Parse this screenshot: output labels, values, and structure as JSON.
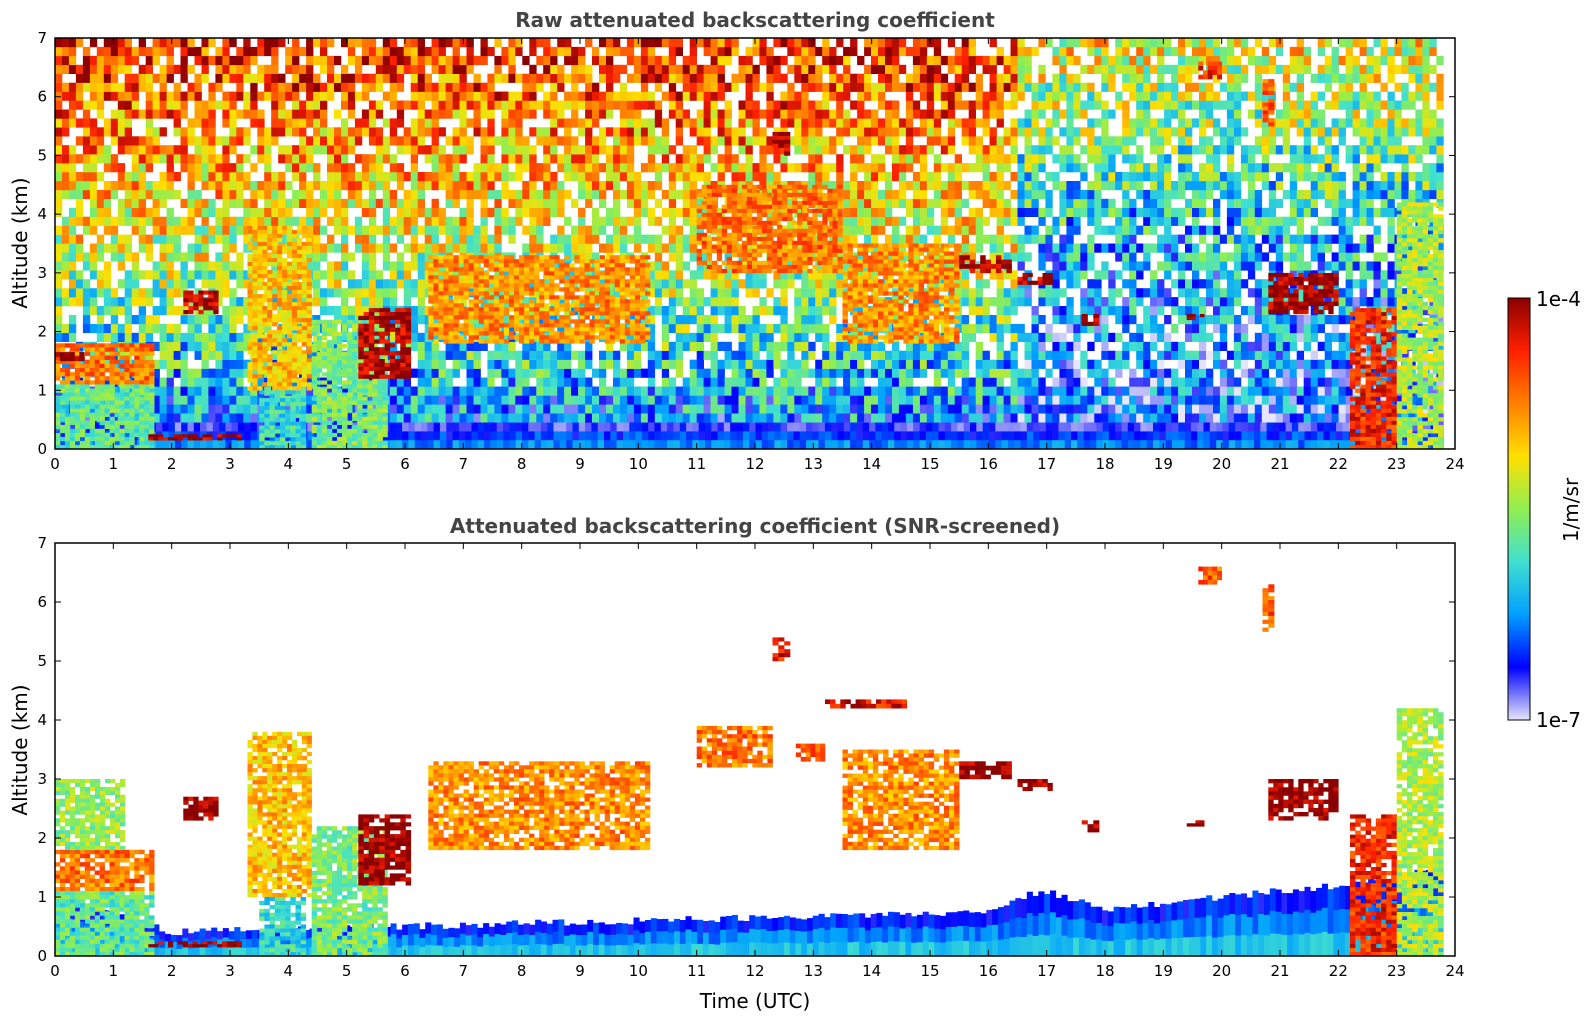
{
  "figure": {
    "xlabel": "Time (UTC)"
  },
  "colorbar": {
    "max_label": "1e-4",
    "min_label": "1e-7",
    "unit_label": "1/m/sr",
    "scale": "log",
    "range": [
      1e-07,
      0.0001
    ],
    "colormap": [
      "#e6e6f8",
      "#0000ff",
      "#00a0ff",
      "#40e0d0",
      "#90ee50",
      "#ffe000",
      "#ff8000",
      "#ff2000",
      "#8b0000"
    ]
  },
  "chart_data": [
    {
      "type": "heatmap",
      "title": "Raw attenuated backscattering coefficient",
      "xlabel": "",
      "ylabel": "Altitude (km)",
      "xlim": [
        0,
        24
      ],
      "ylim": [
        0,
        7
      ],
      "xticks": [
        0,
        1,
        2,
        3,
        4,
        5,
        6,
        7,
        8,
        9,
        10,
        11,
        12,
        13,
        14,
        15,
        16,
        17,
        18,
        19,
        20,
        21,
        22,
        23,
        24
      ],
      "yticks": [
        0,
        1,
        2,
        3,
        4,
        5,
        6,
        7
      ],
      "xtick_labels": [
        "0",
        "1",
        "2",
        "3",
        "4",
        "5",
        "6",
        "7",
        "8",
        "9",
        "10",
        "11",
        "12",
        "13",
        "14",
        "15",
        "16",
        "17",
        "18",
        "19",
        "20",
        "21",
        "22",
        "23",
        "24"
      ],
      "ytick_labels": [
        "0",
        "1",
        "2",
        "3",
        "4",
        "5",
        "6",
        "7"
      ],
      "data_end_hour": 23.8,
      "background_noise": [
        {
          "t0": 0.0,
          "t1": 16.5,
          "top_log": -4.4,
          "mid_log": -5.3,
          "bottom_log": -6.4
        },
        {
          "t0": 16.5,
          "t1": 23.8,
          "top_log": -5.2,
          "mid_log": -6.1,
          "bottom_log": -6.6
        }
      ],
      "boundary_layer": {
        "top_km": 0.45,
        "log_value": -6.5
      },
      "cloud_features": [
        {
          "t0": 0.0,
          "t1": 1.7,
          "z0": 1.1,
          "z1": 1.8,
          "log_value": -4.7
        },
        {
          "t0": 0.0,
          "t1": 1.7,
          "z0": 0.0,
          "z1": 1.1,
          "log_value": -5.7
        },
        {
          "t0": 0.0,
          "t1": 0.5,
          "z0": 1.5,
          "z1": 1.65,
          "log_value": -4.05
        },
        {
          "t0": 1.6,
          "t1": 3.2,
          "z0": 0.15,
          "z1": 0.25,
          "log_value": -4.05
        },
        {
          "t0": 2.2,
          "t1": 2.8,
          "z0": 2.3,
          "z1": 2.7,
          "log_value": -4.1
        },
        {
          "t0": 3.3,
          "t1": 4.4,
          "z0": 1.0,
          "z1": 3.8,
          "log_value": -5.0
        },
        {
          "t0": 3.5,
          "t1": 4.3,
          "z0": 0.0,
          "z1": 1.0,
          "log_value": -5.9
        },
        {
          "t0": 4.4,
          "t1": 5.7,
          "z0": 0.0,
          "z1": 2.2,
          "log_value": -5.6
        },
        {
          "t0": 5.2,
          "t1": 6.1,
          "z0": 1.2,
          "z1": 2.4,
          "log_value": -4.1
        },
        {
          "t0": 6.4,
          "t1": 10.2,
          "z0": 1.8,
          "z1": 3.3,
          "log_value": -4.8
        },
        {
          "t0": 11.0,
          "t1": 13.5,
          "z0": 3.0,
          "z1": 4.5,
          "log_value": -4.7
        },
        {
          "t0": 13.5,
          "t1": 15.5,
          "z0": 1.8,
          "z1": 3.5,
          "log_value": -4.8
        },
        {
          "t0": 15.5,
          "t1": 16.4,
          "z0": 3.0,
          "z1": 3.3,
          "log_value": -4.05
        },
        {
          "t0": 16.5,
          "t1": 17.1,
          "z0": 2.8,
          "z1": 3.0,
          "log_value": -4.1
        },
        {
          "t0": 17.6,
          "t1": 17.9,
          "z0": 2.1,
          "z1": 2.3,
          "log_value": -4.1
        },
        {
          "t0": 19.4,
          "t1": 19.7,
          "z0": 2.2,
          "z1": 2.3,
          "log_value": -4.1
        },
        {
          "t0": 20.8,
          "t1": 22.0,
          "z0": 2.3,
          "z1": 3.0,
          "log_value": -4.05
        },
        {
          "t0": 22.2,
          "t1": 23.0,
          "z0": 0.0,
          "z1": 2.4,
          "log_value": -4.4
        },
        {
          "t0": 23.0,
          "t1": 23.8,
          "z0": 0.0,
          "z1": 4.2,
          "log_value": -5.4
        },
        {
          "t0": 12.3,
          "t1": 12.6,
          "z0": 5.0,
          "z1": 5.4,
          "log_value": -4.1
        },
        {
          "t0": 19.6,
          "t1": 20.0,
          "z0": 6.3,
          "z1": 6.6,
          "log_value": -4.4
        },
        {
          "t0": 20.7,
          "t1": 20.9,
          "z0": 5.5,
          "z1": 6.3,
          "log_value": -4.6
        }
      ]
    },
    {
      "type": "heatmap",
      "title": "Attenuated backscattering coefficient (SNR-screened)",
      "xlabel": "Time (UTC)",
      "ylabel": "Altitude (km)",
      "xlim": [
        0,
        24
      ],
      "ylim": [
        0,
        7
      ],
      "xticks": [
        0,
        1,
        2,
        3,
        4,
        5,
        6,
        7,
        8,
        9,
        10,
        11,
        12,
        13,
        14,
        15,
        16,
        17,
        18,
        19,
        20,
        21,
        22,
        23,
        24
      ],
      "yticks": [
        0,
        1,
        2,
        3,
        4,
        5,
        6,
        7
      ],
      "xtick_labels": [
        "0",
        "1",
        "2",
        "3",
        "4",
        "5",
        "6",
        "7",
        "8",
        "9",
        "10",
        "11",
        "12",
        "13",
        "14",
        "15",
        "16",
        "17",
        "18",
        "19",
        "20",
        "21",
        "22",
        "23",
        "24"
      ],
      "ytick_labels": [
        "0",
        "1",
        "2",
        "3",
        "4",
        "5",
        "6",
        "7"
      ],
      "data_end_hour": 23.8,
      "screened_background": "#ffffff",
      "boundary_layer_profile": {
        "times": [
          0,
          2,
          4,
          6,
          8,
          10,
          12,
          14,
          16,
          16.5,
          17,
          18,
          19,
          20,
          21,
          22,
          23.8
        ],
        "top_km": [
          1.0,
          0.4,
          0.5,
          0.5,
          0.55,
          0.6,
          0.65,
          0.7,
          0.75,
          1.0,
          1.1,
          0.8,
          0.9,
          1.0,
          1.1,
          1.2,
          1.5
        ],
        "log_value": -6.3
      },
      "cloud_features": [
        {
          "t0": 0.0,
          "t1": 1.7,
          "z0": 1.1,
          "z1": 1.8,
          "log_value": -4.7
        },
        {
          "t0": 0.0,
          "t1": 1.7,
          "z0": 0.0,
          "z1": 1.1,
          "log_value": -5.7
        },
        {
          "t0": 0.0,
          "t1": 1.2,
          "z0": 1.8,
          "z1": 3.0,
          "log_value": -5.5
        },
        {
          "t0": 1.6,
          "t1": 3.2,
          "z0": 0.15,
          "z1": 0.25,
          "log_value": -4.0
        },
        {
          "t0": 2.2,
          "t1": 2.8,
          "z0": 2.3,
          "z1": 2.7,
          "log_value": -4.0
        },
        {
          "t0": 3.3,
          "t1": 4.4,
          "z0": 1.0,
          "z1": 3.8,
          "log_value": -5.0
        },
        {
          "t0": 3.5,
          "t1": 4.3,
          "z0": 0.0,
          "z1": 1.0,
          "log_value": -5.9
        },
        {
          "t0": 4.4,
          "t1": 5.7,
          "z0": 0.0,
          "z1": 2.2,
          "log_value": -5.6
        },
        {
          "t0": 5.2,
          "t1": 6.1,
          "z0": 1.2,
          "z1": 2.4,
          "log_value": -4.0
        },
        {
          "t0": 6.4,
          "t1": 10.2,
          "z0": 1.8,
          "z1": 3.3,
          "log_value": -4.8
        },
        {
          "t0": 11.0,
          "t1": 12.3,
          "z0": 3.2,
          "z1": 3.9,
          "log_value": -4.7
        },
        {
          "t0": 12.7,
          "t1": 13.2,
          "z0": 3.3,
          "z1": 3.6,
          "log_value": -4.6
        },
        {
          "t0": 13.5,
          "t1": 15.5,
          "z0": 1.8,
          "z1": 3.5,
          "log_value": -4.8
        },
        {
          "t0": 13.2,
          "t1": 14.6,
          "z0": 4.2,
          "z1": 4.35,
          "log_value": -4.3
        },
        {
          "t0": 15.5,
          "t1": 16.4,
          "z0": 3.0,
          "z1": 3.3,
          "log_value": -4.0
        },
        {
          "t0": 16.5,
          "t1": 17.1,
          "z0": 2.8,
          "z1": 3.0,
          "log_value": -4.0
        },
        {
          "t0": 17.6,
          "t1": 17.9,
          "z0": 2.1,
          "z1": 2.3,
          "log_value": -4.0
        },
        {
          "t0": 19.4,
          "t1": 19.7,
          "z0": 2.2,
          "z1": 2.3,
          "log_value": -4.0
        },
        {
          "t0": 20.8,
          "t1": 22.0,
          "z0": 2.3,
          "z1": 3.0,
          "log_value": -4.0
        },
        {
          "t0": 22.2,
          "t1": 23.0,
          "z0": 0.0,
          "z1": 2.4,
          "log_value": -4.4
        },
        {
          "t0": 23.0,
          "t1": 23.8,
          "z0": 0.0,
          "z1": 4.2,
          "log_value": -5.4
        },
        {
          "t0": 12.3,
          "t1": 12.6,
          "z0": 5.0,
          "z1": 5.4,
          "log_value": -4.3
        },
        {
          "t0": 19.6,
          "t1": 20.0,
          "z0": 6.3,
          "z1": 6.6,
          "log_value": -4.6
        },
        {
          "t0": 20.7,
          "t1": 20.9,
          "z0": 5.5,
          "z1": 6.3,
          "log_value": -4.6
        }
      ]
    }
  ]
}
